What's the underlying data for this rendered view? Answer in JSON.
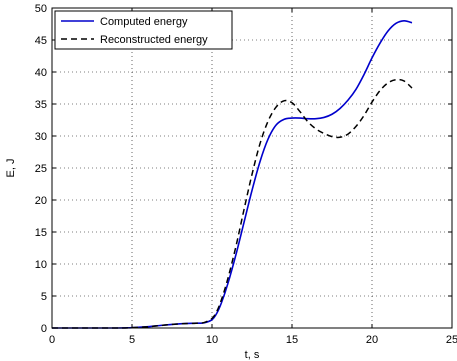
{
  "chart_data": {
    "type": "line",
    "title": "",
    "xlabel": "t, s",
    "ylabel": "E, J",
    "xlim": [
      0,
      25
    ],
    "ylim": [
      0,
      50
    ],
    "xticks": [
      "0",
      "5",
      "10",
      "15",
      "20",
      "25"
    ],
    "yticks": [
      "0",
      "5",
      "10",
      "15",
      "20",
      "25",
      "30",
      "35",
      "40",
      "45",
      "50"
    ],
    "grid": true,
    "legend_position": "top-left",
    "series": [
      {
        "name": "Computed energy",
        "color": "#0000cc",
        "dash": "solid",
        "x": [
          0,
          2,
          4,
          5,
          6,
          7,
          8,
          9,
          9.5,
          10,
          10.3,
          10.6,
          11,
          11.5,
          12,
          12.5,
          13,
          13.5,
          14,
          14.5,
          15,
          15.5,
          16,
          16.5,
          17,
          17.5,
          18,
          18.5,
          19,
          19.5,
          20,
          20.5,
          21,
          21.5,
          22,
          22.5
        ],
        "y": [
          0,
          0,
          0,
          0.05,
          0.2,
          0.45,
          0.65,
          0.75,
          0.8,
          1.3,
          2.3,
          4,
          7,
          11.5,
          16.5,
          21.5,
          26,
          29.5,
          31.7,
          32.6,
          32.8,
          32.8,
          32.7,
          32.7,
          32.9,
          33.4,
          34.3,
          35.6,
          37.3,
          39.6,
          42.2,
          44.5,
          46.4,
          47.6,
          48,
          47.7
        ]
      },
      {
        "name": "Reconstructed energy",
        "color": "#000000",
        "dash": "dashed",
        "x": [
          0,
          2,
          4,
          5,
          6,
          7,
          8,
          9,
          9.5,
          10,
          10.3,
          10.6,
          11,
          11.5,
          12,
          12.5,
          13,
          13.5,
          14,
          14.5,
          15,
          15.5,
          16,
          16.5,
          17,
          17.5,
          18,
          18.5,
          19,
          19.5,
          20,
          20.5,
          21,
          21.5,
          22,
          22.5
        ],
        "y": [
          0,
          0,
          0,
          0.05,
          0.2,
          0.45,
          0.65,
          0.75,
          0.85,
          1.5,
          2.6,
          4.5,
          7.8,
          12.8,
          18.5,
          24,
          28.8,
          32.3,
          34.5,
          35.5,
          35.2,
          33.8,
          32.2,
          31.1,
          30.4,
          29.9,
          29.8,
          30.3,
          31.5,
          33.2,
          35.3,
          37.1,
          38.3,
          38.8,
          38.6,
          37.5
        ]
      }
    ]
  }
}
